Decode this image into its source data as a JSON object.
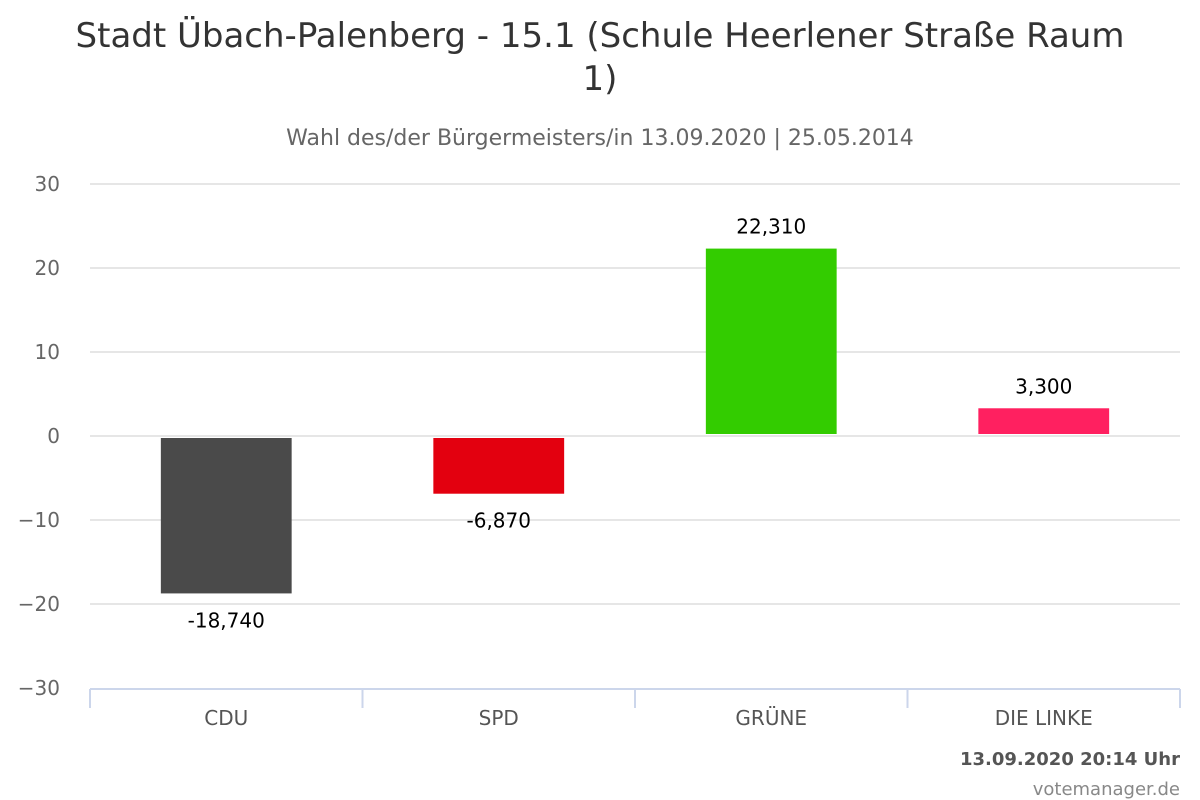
{
  "chart_data": {
    "type": "bar",
    "title_line1": "Stadt Übach-Palenberg - 15.1 (Schule Heerlener Straße Raum",
    "title_line2": "1)",
    "subtitle": "Wahl des/der Bürgermeisters/in 13.09.2020 | 25.05.2014",
    "categories": [
      "CDU",
      "SPD",
      "GRÜNE",
      "DIE LINKE"
    ],
    "values": [
      -18.74,
      -6.87,
      22.31,
      3.3
    ],
    "value_labels": [
      "-18,740",
      "-6,870",
      "22,310",
      "3,300"
    ],
    "colors": [
      "#4a4a4a",
      "#e3000f",
      "#33cc00",
      "#ff2060"
    ],
    "ylim": [
      -30,
      30
    ],
    "yticks": [
      30,
      20,
      10,
      0,
      -10,
      -20,
      -30
    ],
    "ytick_labels": [
      "30",
      "20",
      "10",
      "0",
      "−10",
      "−20",
      "−30"
    ],
    "grid": true,
    "legend": "none"
  },
  "footer": {
    "timestamp": "13.09.2020 20:14 Uhr",
    "credit": "votemanager.de"
  }
}
